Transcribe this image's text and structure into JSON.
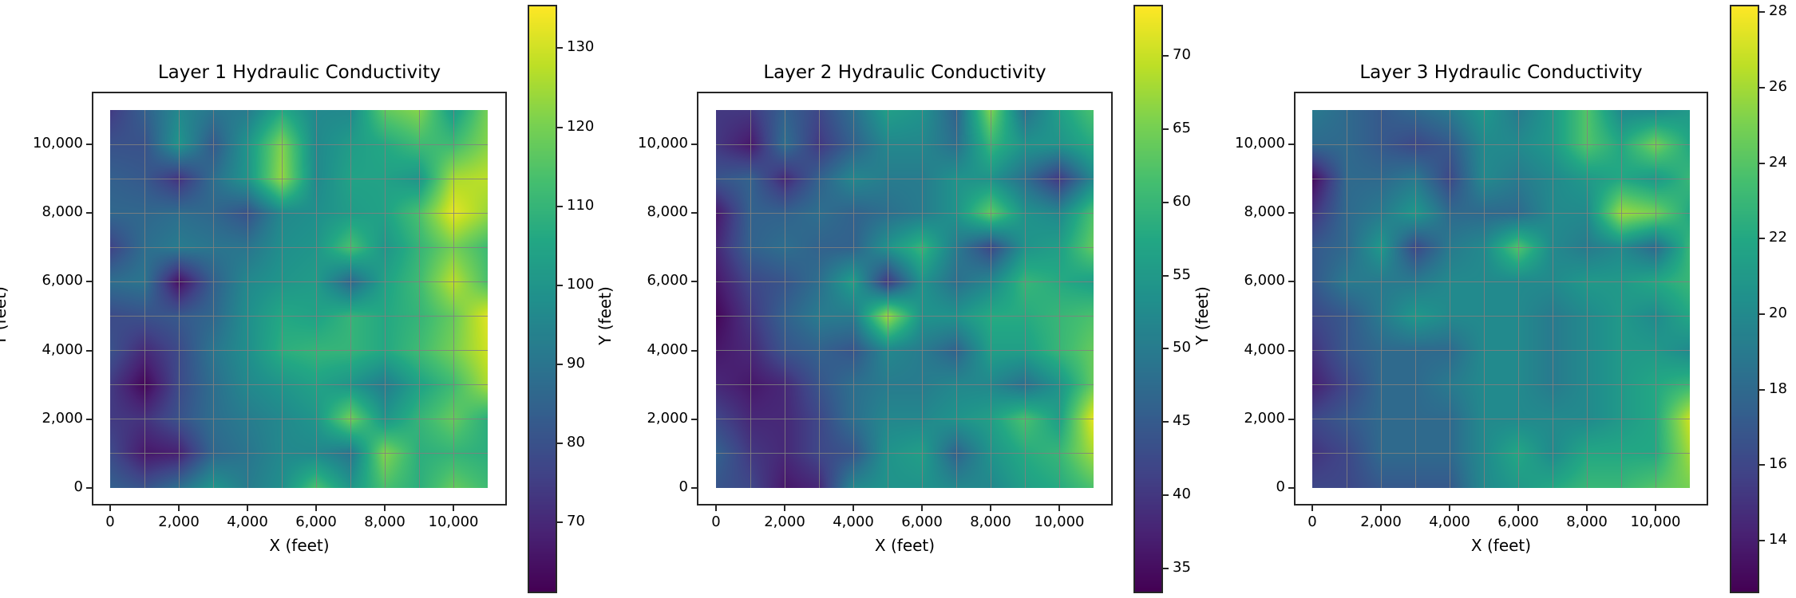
{
  "chart_data": [
    {
      "type": "heatmap",
      "title": "Layer 1 Hydraulic Conductivity",
      "xlabel": "X (feet)",
      "ylabel": "Y (feet)",
      "x": [
        0,
        1000,
        2000,
        3000,
        4000,
        5000,
        6000,
        7000,
        8000,
        9000,
        10000,
        11000
      ],
      "y": [
        11000,
        10000,
        9000,
        8000,
        7000,
        6000,
        5000,
        4000,
        3000,
        2000,
        1000,
        0
      ],
      "xticks": [
        0,
        2000,
        4000,
        6000,
        8000,
        10000
      ],
      "xtick_labels": [
        "0",
        "2,000",
        "4,000",
        "6,000",
        "8,000",
        "10,000"
      ],
      "yticks": [
        0,
        2000,
        4000,
        6000,
        8000,
        10000
      ],
      "ytick_labels": [
        "0",
        "2,000",
        "4,000",
        "6,000",
        "8,000",
        "10,000"
      ],
      "xlim": [
        -500,
        11500
      ],
      "ylim": [
        -500,
        11500
      ],
      "grid": true,
      "colormap": "viridis",
      "clim": [
        61,
        135.5
      ],
      "colorbar_ticks": [
        70,
        80,
        90,
        100,
        110,
        120,
        130
      ],
      "values": [
        [
          74,
          84,
          96,
          90,
          92,
          106,
          96,
          96,
          117,
          122,
          102,
          120
        ],
        [
          80,
          80,
          100,
          82,
          100,
          122,
          96,
          102,
          106,
          112,
          112,
          122
        ],
        [
          84,
          82,
          72,
          88,
          100,
          124,
          96,
          104,
          104,
          100,
          126,
          128
        ],
        [
          86,
          86,
          88,
          86,
          80,
          96,
          98,
          102,
          104,
          114,
          133,
          124
        ],
        [
          76,
          88,
          92,
          90,
          90,
          98,
          100,
          114,
          100,
          110,
          120,
          112
        ],
        [
          88,
          90,
          64,
          84,
          96,
          100,
          102,
          86,
          104,
          112,
          128,
          114
        ],
        [
          78,
          80,
          82,
          86,
          98,
          106,
          104,
          110,
          106,
          110,
          118,
          132
        ],
        [
          80,
          70,
          78,
          90,
          98,
          108,
          110,
          110,
          106,
          112,
          120,
          130
        ],
        [
          74,
          62,
          78,
          88,
          96,
          100,
          104,
          100,
          92,
          104,
          112,
          126
        ],
        [
          74,
          72,
          80,
          88,
          92,
          96,
          100,
          120,
          100,
          110,
          118,
          108
        ],
        [
          78,
          66,
          68,
          86,
          90,
          96,
          96,
          90,
          122,
          108,
          110,
          108
        ],
        [
          84,
          80,
          88,
          100,
          92,
          98,
          114,
          100,
          114,
          108,
          118,
          112
        ]
      ]
    },
    {
      "type": "heatmap",
      "title": "Layer 2 Hydraulic Conductivity",
      "xlabel": "X (feet)",
      "ylabel": "Y (feet)",
      "x": [
        0,
        1000,
        2000,
        3000,
        4000,
        5000,
        6000,
        7000,
        8000,
        9000,
        10000,
        11000
      ],
      "y": [
        11000,
        10000,
        9000,
        8000,
        7000,
        6000,
        5000,
        4000,
        3000,
        2000,
        1000,
        0
      ],
      "xticks": [
        0,
        2000,
        4000,
        6000,
        8000,
        10000
      ],
      "xtick_labels": [
        "0",
        "2,000",
        "4,000",
        "6,000",
        "8,000",
        "10,000"
      ],
      "yticks": [
        0,
        2000,
        4000,
        6000,
        8000,
        10000
      ],
      "ytick_labels": [
        "0",
        "2,000",
        "4,000",
        "6,000",
        "8,000",
        "10,000"
      ],
      "xlim": [
        -500,
        11500
      ],
      "ylim": [
        -500,
        11500
      ],
      "grid": true,
      "colormap": "viridis",
      "clim": [
        33.3,
        73.5
      ],
      "colorbar_ticks": [
        35,
        40,
        45,
        50,
        55,
        60,
        65,
        70
      ],
      "values": [
        [
          40,
          40,
          46,
          42,
          48,
          56,
          54,
          46,
          66,
          48,
          56,
          62
        ],
        [
          40,
          36,
          48,
          40,
          46,
          52,
          52,
          48,
          60,
          54,
          54,
          58
        ],
        [
          44,
          46,
          38,
          46,
          52,
          50,
          50,
          54,
          54,
          48,
          40,
          52
        ],
        [
          36,
          46,
          46,
          48,
          46,
          48,
          50,
          54,
          64,
          54,
          52,
          62
        ],
        [
          38,
          46,
          48,
          46,
          46,
          54,
          60,
          50,
          42,
          54,
          56,
          64
        ],
        [
          36,
          42,
          44,
          48,
          56,
          40,
          54,
          48,
          52,
          60,
          58,
          56
        ],
        [
          34,
          40,
          46,
          50,
          50,
          68,
          54,
          54,
          58,
          58,
          60,
          62
        ],
        [
          36,
          38,
          44,
          46,
          44,
          52,
          50,
          46,
          56,
          56,
          60,
          64
        ],
        [
          38,
          36,
          38,
          44,
          48,
          50,
          50,
          52,
          52,
          48,
          54,
          64
        ],
        [
          42,
          38,
          38,
          42,
          48,
          52,
          52,
          54,
          56,
          62,
          56,
          72
        ],
        [
          46,
          40,
          38,
          42,
          44,
          54,
          56,
          46,
          54,
          58,
          60,
          68
        ],
        [
          44,
          42,
          36,
          38,
          52,
          54,
          54,
          52,
          52,
          56,
          58,
          62
        ]
      ]
    },
    {
      "type": "heatmap",
      "title": "Layer 3 Hydraulic Conductivity",
      "xlabel": "X (feet)",
      "ylabel": "Y (feet)",
      "x": [
        0,
        1000,
        2000,
        3000,
        4000,
        5000,
        6000,
        7000,
        8000,
        9000,
        10000,
        11000
      ],
      "y": [
        11000,
        10000,
        9000,
        8000,
        7000,
        6000,
        5000,
        4000,
        3000,
        2000,
        1000,
        0
      ],
      "xticks": [
        0,
        2000,
        4000,
        6000,
        8000,
        10000
      ],
      "xtick_labels": [
        "0",
        "2,000",
        "4,000",
        "6,000",
        "8,000",
        "10,000"
      ],
      "yticks": [
        0,
        2000,
        4000,
        6000,
        8000,
        10000
      ],
      "ytick_labels": [
        "0",
        "2,000",
        "4,000",
        "6,000",
        "8,000",
        "10,000"
      ],
      "xlim": [
        -500,
        11500
      ],
      "ylim": [
        -500,
        11500
      ],
      "grid": true,
      "colormap": "viridis",
      "clim": [
        12.6,
        28.2
      ],
      "colorbar_ticks": [
        14,
        16,
        18,
        20,
        22,
        24,
        26,
        28
      ],
      "values": [
        [
          19,
          18,
          17,
          18,
          19,
          21,
          19,
          21,
          24,
          20,
          20,
          21
        ],
        [
          18,
          18,
          17,
          16,
          17,
          20,
          20,
          21,
          24,
          22,
          25,
          22
        ],
        [
          13,
          18,
          18,
          19,
          16,
          20,
          19,
          20,
          21,
          22,
          21,
          23
        ],
        [
          15,
          18,
          19,
          21,
          18,
          18,
          18,
          20,
          20,
          26,
          25,
          22
        ],
        [
          17,
          18,
          21,
          16,
          19,
          20,
          24,
          20,
          19,
          20,
          18,
          23
        ],
        [
          17,
          19,
          19,
          19,
          20,
          20,
          20,
          20,
          21,
          21,
          22,
          23
        ],
        [
          16,
          17,
          19,
          21,
          20,
          20,
          20,
          19,
          20,
          21,
          20,
          22
        ],
        [
          15,
          17,
          18,
          18,
          18,
          20,
          20,
          19,
          20,
          21,
          21,
          20
        ],
        [
          14,
          16,
          18,
          18,
          19,
          20,
          20,
          19,
          20,
          21,
          22,
          23
        ],
        [
          16,
          17,
          18,
          18,
          18,
          20,
          20,
          20,
          20,
          21,
          22,
          27
        ],
        [
          15,
          16,
          18,
          18,
          18,
          20,
          22,
          20,
          22,
          22,
          22,
          26
        ],
        [
          16,
          16,
          17,
          17,
          17,
          20,
          21,
          22,
          23,
          23,
          24,
          25
        ]
      ]
    }
  ]
}
